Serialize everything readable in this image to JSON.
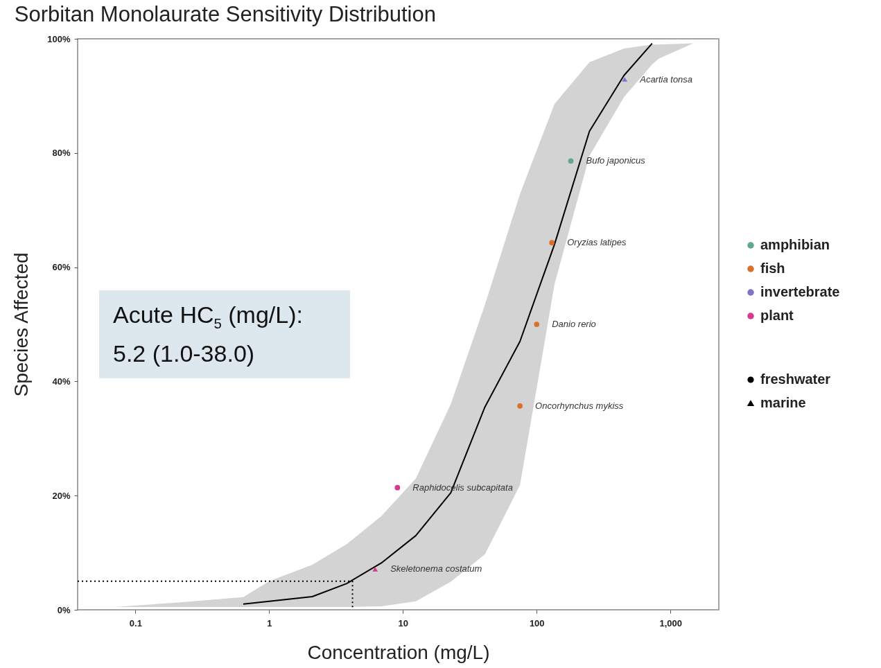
{
  "chart_data": {
    "type": "line",
    "title": "Sorbitan Monolaurate Sensitivity Distribution",
    "xlabel": "Concentration  (mg/L)",
    "ylabel": "Species Affected",
    "log": "x",
    "grid": false,
    "legend": "right",
    "xlim": [
      0.037,
      2300
    ],
    "xticks": [
      0.1,
      1,
      10,
      100,
      {
        "value": 1000,
        "label": "1,000"
      }
    ],
    "ylim": [
      0,
      100
    ],
    "yticks": [
      {
        "value": 0,
        "label": "0%"
      },
      {
        "value": 20,
        "label": "20%"
      },
      {
        "value": 40,
        "label": "40%"
      },
      {
        "value": 60,
        "label": "60%"
      },
      {
        "value": 80,
        "label": "80%"
      },
      {
        "value": 100,
        "label": "100%"
      }
    ],
    "series": [
      {
        "color": "#000000",
        "marker": "none",
        "line_style": "solid",
        "x": [
          0.07,
          0.19,
          0.64,
          1,
          2.1,
          3.8,
          6.9,
          12.5,
          22.8,
          41,
          75,
          136,
          248,
          450,
          730,
          817,
          1480
        ],
        "values": [
          null,
          null,
          1,
          1.5,
          2.3,
          4.6,
          8.2,
          13,
          20.5,
          35.5,
          47,
          64,
          83.8,
          93.6,
          99.2,
          null,
          null
        ],
        "lower": [
          0.5,
          0.5,
          0.5,
          0.5,
          0.5,
          0.5,
          0.6,
          1.5,
          4.9,
          9.7,
          21.8,
          57,
          79.5,
          89.8,
          95.5,
          96.5,
          99.2
        ],
        "upper": [
          0.5,
          1.2,
          2.2,
          5,
          7.9,
          11.5,
          16.4,
          23,
          36,
          53.4,
          72.8,
          88.6,
          95.9,
          98.3,
          99,
          99,
          99.2
        ]
      },
      {
        "color": "#000000",
        "marker": "none",
        "line_style": "dotted",
        "x": [
          0.037,
          4.2,
          4.2
        ],
        "values": [
          5,
          5,
          0
        ]
      },
      {
        "type": "scatter",
        "name": "amphibian",
        "color": "#5fa98b",
        "marker": "circle",
        "x": [
          180
        ],
        "values": [
          78.6
        ]
      },
      {
        "type": "scatter",
        "name": "fish",
        "color": "#d9712b",
        "marker": "circle",
        "x": [
          130,
          100,
          75
        ],
        "values": [
          64.3,
          50,
          35.7
        ]
      },
      {
        "type": "scatter",
        "name": "invertebrate",
        "color": "#8075c4",
        "marker": "triangle",
        "x": [
          455
        ],
        "values": [
          92.9
        ]
      },
      {
        "type": "scatter",
        "name": "plant",
        "color": "#d63a8e",
        "marker": "circle",
        "x": [
          9.1
        ],
        "values": [
          21.4
        ]
      },
      {
        "type": "scatter",
        "color": "#d63a8e",
        "marker": "triangle",
        "x": [
          6.2
        ],
        "values": [
          7.1
        ]
      },
      {
        "type": "scatter",
        "name": "freshwater",
        "color": "#000000",
        "marker": "circle"
      },
      {
        "type": "scatter",
        "name": "marine",
        "color": "#000000",
        "marker": "triangle"
      }
    ],
    "annotations": [
      {
        "text": "Acartia tonsa",
        "x": 455,
        "y": 92.9
      },
      {
        "text": "Bufo japonicus",
        "x": 180,
        "y": 78.6
      },
      {
        "text": "Oryzias latipes",
        "x": 130,
        "y": 64.3
      },
      {
        "text": "Danio rerio",
        "x": 100,
        "y": 50
      },
      {
        "text": "Oncorhynchus mykiss",
        "x": 75,
        "y": 35.7
      },
      {
        "text": "Raphidocelis subcapitata",
        "x": 9.1,
        "y": 21.4
      },
      {
        "text": "Skeletonema costatum",
        "x": 6.2,
        "y": 7.1
      },
      "Acute HC$_{5}$ (mg/L):",
      "5.2 (1.0-38.0)"
    ]
  }
}
